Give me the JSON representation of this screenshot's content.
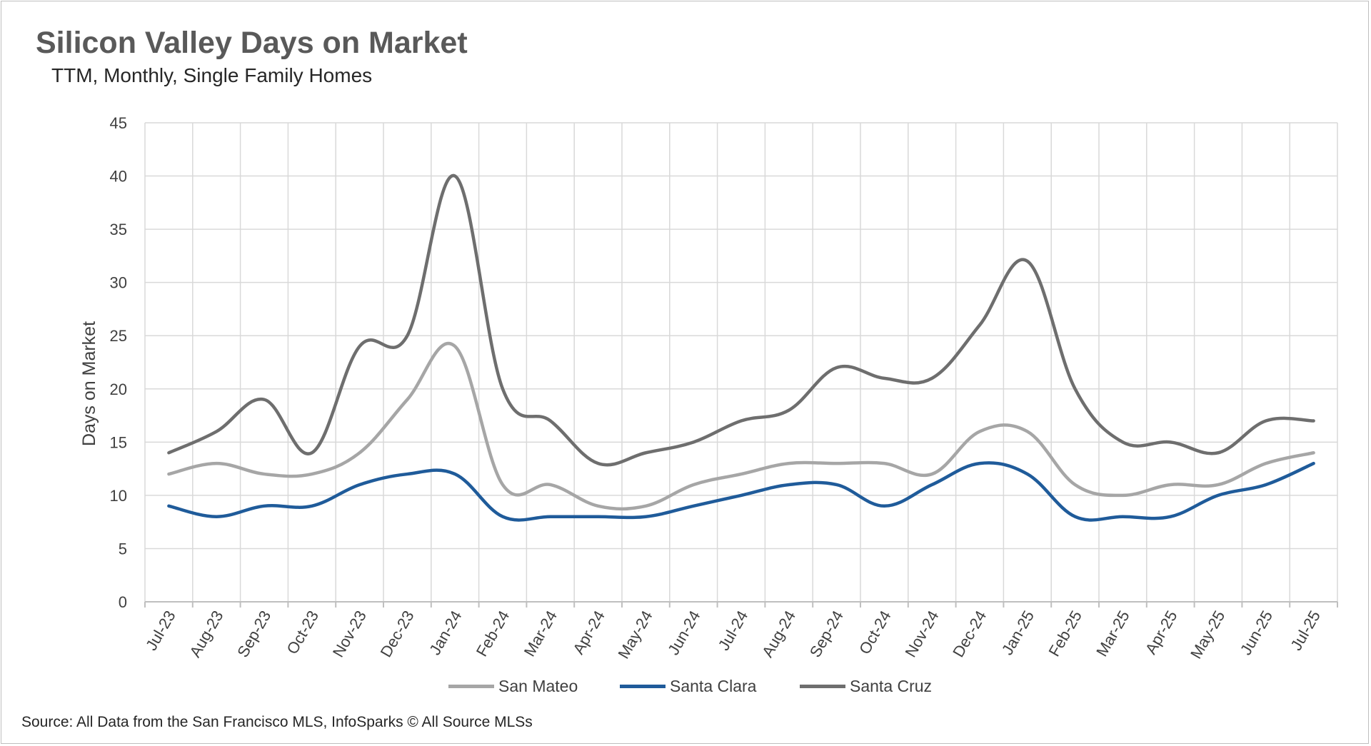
{
  "title": "Silicon Valley Days on Market",
  "subtitle": "TTM, Monthly, Single Family Homes",
  "source": "Source: All Data from the San Francisco MLS, InfoSparks © All Source MLSs",
  "chart_data": {
    "type": "line",
    "ylabel": "Days on Market",
    "xlabel": "",
    "ylim": [
      0,
      45
    ],
    "yticks": [
      0,
      5,
      10,
      15,
      20,
      25,
      30,
      35,
      40,
      45
    ],
    "grid": true,
    "legend_position": "bottom",
    "categories": [
      "Jul-23",
      "Aug-23",
      "Sep-23",
      "Oct-23",
      "Nov-23",
      "Dec-23",
      "Jan-24",
      "Feb-24",
      "Mar-24",
      "Apr-24",
      "May-24",
      "Jun-24",
      "Jul-24",
      "Aug-24",
      "Sep-24",
      "Oct-24",
      "Nov-24",
      "Dec-24",
      "Jan-25",
      "Feb-25",
      "Mar-25",
      "Apr-25",
      "May-25",
      "Jun-25",
      "Jul-25"
    ],
    "series": [
      {
        "name": "San Mateo",
        "color": "#a6a6a6",
        "values": [
          12,
          13,
          12,
          12,
          14,
          19,
          24,
          11,
          11,
          9,
          9,
          11,
          12,
          13,
          13,
          13,
          12,
          16,
          16,
          11,
          10,
          11,
          11,
          13,
          14
        ]
      },
      {
        "name": "Santa Clara",
        "color": "#1f5b9a",
        "values": [
          9,
          8,
          9,
          9,
          11,
          12,
          12,
          8,
          8,
          8,
          8,
          9,
          10,
          11,
          11,
          9,
          11,
          13,
          12,
          8,
          8,
          8,
          10,
          11,
          13
        ]
      },
      {
        "name": "Santa Cruz",
        "color": "#6e6e6e",
        "values": [
          14,
          16,
          19,
          14,
          24,
          25,
          40,
          20,
          17,
          13,
          14,
          15,
          17,
          18,
          22,
          21,
          21,
          26,
          32,
          20,
          15,
          15,
          14,
          17,
          17
        ]
      }
    ]
  }
}
